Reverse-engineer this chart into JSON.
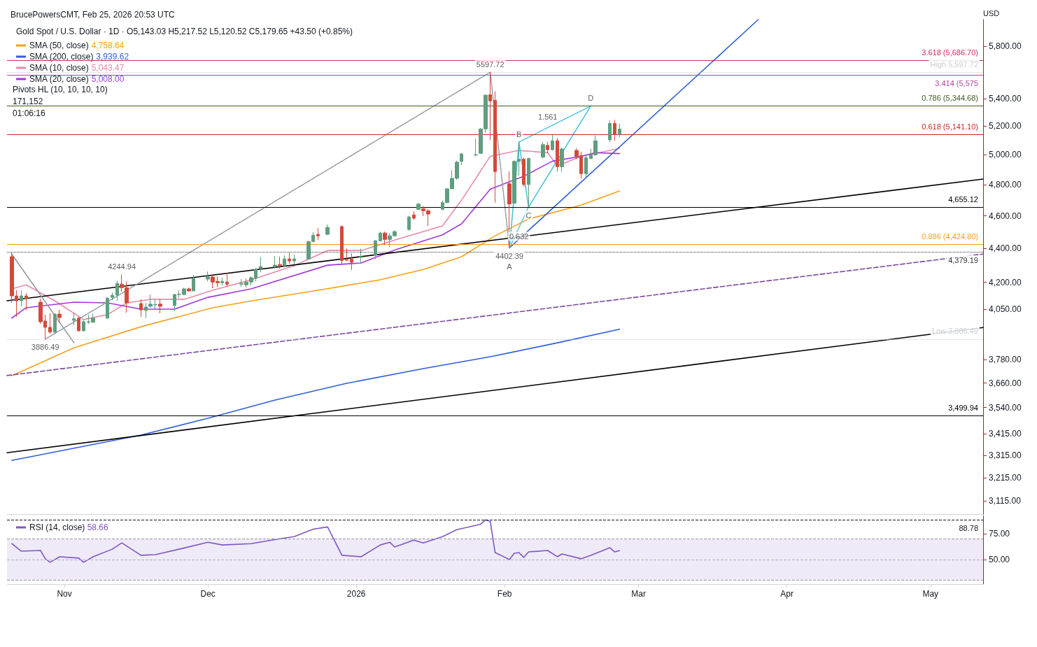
{
  "chart_data": [
    {
      "type": "candlestick",
      "title": "Gold Spot / U.S. Dollar · 1D · O5,143.03 H5,217.52 L5,120.52 C5,179.65 +43.50 (+0.85%)",
      "subtitle": "BrucePowersCMT, Feb 25, 2026 20:53 UTC",
      "ylabel": "USD",
      "colors": [
        "#d24a3c",
        "#d24a3c",
        "#5f9e7f",
        "#d24a3c",
        "#d24a3c",
        "#d24a3c",
        "#d24a3c",
        "#5f9e7f",
        "#d24a3c",
        "#5f9e7f",
        "#d24a3c",
        "#5f9e7f",
        "#5f9e7f",
        "#5f9e7f",
        "#5f9e7f",
        "#5f9e7f",
        "#5f9e7f",
        "#d24a3c",
        "#d24a3c",
        "#d24a3c",
        "#5f9e7f",
        "#5f9e7f",
        "#5f9e7f",
        "#d24a3c",
        "#5f9e7f",
        "#5f9e7f",
        "#5f9e7f",
        "#d24a3c",
        "#5f9e7f",
        "#5f9e7f",
        "#d24a3c",
        "#d24a3c",
        "#5f9e7f",
        "#d24a3c",
        "#5f9e7f",
        "#5f9e7f",
        "#5f9e7f",
        "#5f9e7f",
        "#5f9e7f",
        "#5f9e7f",
        "#d24a3c",
        "#5f9e7f",
        "#d24a3c",
        "#5f9e7f",
        "#5f9e7f",
        "#5f9e7f",
        "#d24a3c",
        "#5f9e7f",
        "#d24a3c",
        "#d24a3c",
        "#d24a3c",
        "#5f9e7f",
        "#5f9e7f",
        "#5f9e7f",
        "#d24a3c",
        "#5f9e7f",
        "#5f9e7f",
        "#5f9e7f",
        "#d24a3c",
        "#5f9e7f",
        "#d24a3c",
        "#d24a3c",
        "#5f9e7f",
        "#5f9e7f",
        "#5f9e7f",
        "#5f9e7f",
        "#5f9e7f",
        "#5f9e7f",
        "#5f9e7f",
        "#5f9e7f",
        "#d24a3c",
        "#d24a3c",
        "#d24a3c",
        "#5f9e7f",
        "#5f9e7f",
        "#d24a3c",
        "#5f9e7f",
        "#5f9e7f",
        "#d24a3c",
        "#5f9e7f",
        "#d24a3c",
        "#5f9e7f",
        "#d24a3c",
        "#d24a3c",
        "#5f9e7f",
        "#5f9e7f",
        "#5f9e7f",
        "#5f9e7f",
        "#d24a3c",
        "#5f9e7f"
      ],
      "x": [
        "2025-10-21",
        "2025-10-22",
        "2025-10-23",
        "2025-10-24",
        "2025-10-27",
        "2025-10-28",
        "2025-10-29",
        "2025-10-30",
        "2025-10-31",
        "2025-11-03",
        "2025-11-04",
        "2025-11-05",
        "2025-11-06",
        "2025-11-07",
        "2025-11-10",
        "2025-11-11",
        "2025-11-12",
        "2025-11-13",
        "2025-11-14",
        "2025-11-17",
        "2025-11-18",
        "2025-11-19",
        "2025-11-20",
        "2025-11-21",
        "2025-11-24",
        "2025-11-25",
        "2025-11-26",
        "2025-11-27",
        "2025-11-28",
        "2025-12-01",
        "2025-12-02",
        "2025-12-03",
        "2025-12-04",
        "2025-12-05",
        "2025-12-08",
        "2025-12-09",
        "2025-12-10",
        "2025-12-11",
        "2025-12-12",
        "2025-12-15",
        "2025-12-16",
        "2025-12-17",
        "2025-12-18",
        "2025-12-19",
        "2025-12-22",
        "2025-12-23",
        "2025-12-24",
        "2025-12-26",
        "2025-12-29",
        "2025-12-30",
        "2025-12-31",
        "2026-01-02",
        "2026-01-05",
        "2026-01-06",
        "2026-01-07",
        "2026-01-08",
        "2026-01-09",
        "2026-01-12",
        "2026-01-13",
        "2026-01-14",
        "2026-01-15",
        "2026-01-16",
        "2026-01-19",
        "2026-01-20",
        "2026-01-21",
        "2026-01-22",
        "2026-01-23",
        "2026-01-26",
        "2026-01-27",
        "2026-01-28",
        "2026-01-29",
        "2026-01-30",
        "2026-02-02",
        "2026-02-03",
        "2026-02-04",
        "2026-02-05",
        "2026-02-06",
        "2026-02-09",
        "2026-02-10",
        "2026-02-11",
        "2026-02-12",
        "2026-02-13",
        "2026-02-16",
        "2026-02-17",
        "2026-02-18",
        "2026-02-19",
        "2026-02-20",
        "2026-02-23",
        "2026-02-24",
        "2026-02-25"
      ],
      "ohlc": [
        [
          4350,
          4378,
          4084,
          4123
        ],
        [
          4123,
          4155,
          4007,
          4096
        ],
        [
          4096,
          4155,
          4065,
          4123
        ],
        [
          4123,
          4139,
          4045,
          4108
        ],
        [
          4088,
          4108,
          3969,
          3980
        ],
        [
          3984,
          4019,
          3886.49,
          3950
        ],
        [
          3950,
          4026,
          3916,
          3924
        ],
        [
          3924,
          4026,
          3912,
          4022
        ],
        [
          4022,
          4045,
          3973,
          4003
        ],
        [
          3988,
          4030,
          3961,
          3996
        ],
        [
          4000,
          4007,
          3928,
          3931
        ],
        [
          3931,
          3988,
          3928,
          3980
        ],
        [
          3977,
          4019,
          3969,
          3980
        ],
        [
          3977,
          4026,
          3977,
          4000
        ],
        [
          4000,
          4115,
          3996,
          4111
        ],
        [
          4115,
          4143,
          4100,
          4127
        ],
        [
          4127,
          4210,
          4096,
          4194
        ],
        [
          4190,
          4244.94,
          4147,
          4170
        ],
        [
          4170,
          4206,
          4030,
          4084
        ],
        [
          4080,
          4104,
          4007,
          4045
        ],
        [
          4042,
          4084,
          4000,
          4061
        ],
        [
          4065,
          4131,
          4057,
          4077
        ],
        [
          4073,
          4104,
          4045,
          4075
        ],
        [
          4077,
          4104,
          4026,
          4065
        ],
        [
          4069,
          4135,
          4038,
          4131
        ],
        [
          4131,
          4155,
          4111,
          4133
        ],
        [
          4131,
          4170,
          4127,
          4163
        ],
        [
          4163,
          4170,
          4147,
          4151
        ],
        [
          4151,
          4243,
          4151,
          4223
        ],
        [
          4219,
          4263,
          4206,
          4231
        ],
        [
          4231,
          4245,
          4167,
          4202
        ],
        [
          4206,
          4235,
          4174,
          4198
        ],
        [
          4198,
          4227,
          4182,
          4206
        ],
        [
          4202,
          4255,
          4174,
          4190
        ],
        [
          4190,
          4219,
          4174,
          4194
        ],
        [
          4186,
          4223,
          4170,
          4202
        ],
        [
          4202,
          4235,
          4182,
          4227
        ],
        [
          4223,
          4284,
          4206,
          4276
        ],
        [
          4280,
          4350,
          4259,
          4292
        ],
        [
          4292,
          4354,
          4280,
          4300
        ],
        [
          4304,
          4350,
          4280,
          4296
        ],
        [
          4296,
          4358,
          4288,
          4337
        ],
        [
          4337,
          4374,
          4308,
          4325
        ],
        [
          4325,
          4362,
          4304,
          4337
        ],
        [
          4337,
          4446,
          4333,
          4441
        ],
        [
          4441,
          4498,
          4437,
          4480
        ],
        [
          4485,
          4524,
          4450,
          4476
        ],
        [
          4485,
          4546,
          4480,
          4528
        ],
        [
          4533,
          4541,
          4304,
          4327
        ],
        [
          4333,
          4399,
          4325,
          4329
        ],
        [
          4337,
          4370,
          4271,
          4317
        ],
        [
          4346,
          4399,
          4313,
          4350
        ],
        [
          4358,
          4450,
          4337,
          4446
        ],
        [
          4446,
          4502,
          4441,
          4493
        ],
        [
          4493,
          4502,
          4420,
          4454
        ],
        [
          4454,
          4493,
          4407,
          4476
        ],
        [
          4476,
          4511,
          4472,
          4502
        ],
        [
          4515,
          4600,
          4507,
          4593
        ],
        [
          4606,
          4628,
          4576,
          4585
        ],
        [
          4641,
          4680,
          4636,
          4675
        ],
        [
          4645,
          4662,
          4598,
          4632
        ],
        [
          4632,
          4641,
          4537,
          4611
        ],
        [
          4641,
          4697,
          4636,
          4684
        ],
        [
          4684,
          4778,
          4680,
          4773
        ],
        [
          4773,
          4897,
          4773,
          4842
        ],
        [
          4842,
          4960,
          4832,
          4950
        ],
        [
          4955,
          5012,
          4930,
          5006
        ],
        [
          4998,
          5112,
          4990,
          5001
        ],
        [
          5010,
          5186,
          5006,
          5180
        ],
        [
          5180,
          5428,
          5155,
          5425
        ],
        [
          5428,
          5597.72,
          5103,
          5382
        ],
        [
          5386,
          5454,
          4684,
          4887
        ],
        [
          4806,
          4887,
          4402.39,
          4675
        ],
        [
          4680,
          4965,
          4675,
          4955
        ],
        [
          4955,
          5088,
          4860,
          4970
        ],
        [
          4970,
          4980,
          4787,
          4801
        ],
        [
          4801,
          4980,
          4655.12,
          4975
        ],
        [
          4985,
          5090,
          4975,
          5070
        ],
        [
          5065,
          5088,
          5012,
          5035
        ],
        [
          5035,
          5137,
          5030,
          5097
        ],
        [
          5097,
          5117,
          4887,
          4920
        ],
        [
          4920,
          5050,
          4887,
          5040
        ],
        [
          5030,
          5045,
          4970,
          4990
        ],
        [
          4995,
          5020,
          4840,
          4873
        ],
        [
          4873,
          4995,
          4850,
          4980
        ],
        [
          4975,
          5040,
          4970,
          5000
        ],
        [
          5000,
          5133,
          4995,
          5097
        ],
        [
          5103,
          5240,
          5088,
          5219
        ],
        [
          5219,
          5245,
          5098,
          5141
        ],
        [
          5143.03,
          5217.52,
          5120.52,
          5179.65
        ]
      ],
      "series": [
        {
          "type": "line",
          "name": "SMA (50, close) 4,758.64",
          "color": "#f5a01a",
          "x": [
            "2025-10-21",
            "2025-11-03",
            "2025-11-17",
            "2025-12-02",
            "2025-12-10",
            "2025-12-24",
            "2026-01-06",
            "2026-01-15",
            "2026-01-23",
            "2026-01-30",
            "2026-02-06",
            "2026-02-17",
            "2026-02-25"
          ],
          "values": [
            3697,
            3841,
            3953,
            4057,
            4095,
            4155,
            4215,
            4275,
            4350,
            4476,
            4580,
            4668,
            4758.64
          ]
        },
        {
          "type": "line",
          "name": "SMA (200, close) 3,939.62",
          "color": "#2f5fd8",
          "x": [
            "2025-10-21",
            "2025-11-17",
            "2025-12-01",
            "2025-12-15",
            "2025-12-30",
            "2026-01-15",
            "2026-01-29",
            "2026-02-12",
            "2026-02-25"
          ],
          "values": [
            3293,
            3409,
            3488,
            3576,
            3659,
            3733,
            3794,
            3867,
            3939.62
          ]
        },
        {
          "type": "line",
          "name": "SMA (10, close) 5,043.47",
          "color": "#e88aa6",
          "x": [
            "2025-10-21",
            "2025-10-24",
            "2025-10-30",
            "2025-11-05",
            "2025-11-10",
            "2025-11-14",
            "2025-11-19",
            "2025-11-26",
            "2025-12-02",
            "2025-12-10",
            "2025-12-19",
            "2025-12-26",
            "2026-01-02",
            "2026-01-09",
            "2026-01-19",
            "2026-01-23",
            "2026-01-29",
            "2026-02-04",
            "2026-02-10",
            "2026-02-12",
            "2026-02-17",
            "2026-02-25"
          ],
          "values": [
            4163,
            4186,
            4096,
            3992,
            4019,
            4084,
            4104,
            4104,
            4155,
            4215,
            4296,
            4387,
            4387,
            4450,
            4537,
            4700,
            4990,
            5030,
            5015,
            4925,
            4990,
            5043.47
          ]
        },
        {
          "type": "line",
          "name": "SMA (20, close) 5,008.00",
          "color": "#a03ad6",
          "x": [
            "2025-10-21",
            "2025-10-24",
            "2025-11-03",
            "2025-11-10",
            "2025-11-17",
            "2025-11-24",
            "2025-12-01",
            "2025-12-10",
            "2025-12-26",
            "2026-01-02",
            "2026-01-09",
            "2026-01-19",
            "2026-01-23",
            "2026-01-29",
            "2026-02-05",
            "2026-02-11",
            "2026-02-17",
            "2026-02-20",
            "2026-02-25"
          ],
          "values": [
            4000,
            4057,
            4088,
            4084,
            4049,
            4049,
            4115,
            4163,
            4300,
            4313,
            4390,
            4482,
            4550,
            4770,
            4856,
            4957,
            4990,
            5015,
            5008.0
          ]
        },
        {
          "type": "line",
          "color": "#000000",
          "x": [
            "2025-10-20",
            "2026-05-12"
          ],
          "values": [
            4096,
            4837
          ]
        },
        {
          "type": "line",
          "color": "#000000",
          "x": [
            "2025-10-20",
            "2026-05-12"
          ],
          "values": [
            3328,
            3949
          ]
        },
        {
          "type": "line",
          "color": "#7b4aa0",
          "line_style": "dashed",
          "x": [
            "2025-10-20",
            "2026-05-12"
          ],
          "values": [
            3698,
            4366
          ]
        },
        {
          "type": "line",
          "color": "#2b5fd9",
          "x": [
            "2026-02-02",
            "2026-03-26"
          ],
          "values": [
            4402.39,
            6015
          ]
        },
        {
          "type": "line",
          "color": "#4cc3d9",
          "x": [
            "2026-02-02",
            "2026-02-04",
            "2026-02-06",
            "2026-02-19"
          ],
          "values": [
            4402.39,
            5088,
            4655.12,
            5344.68
          ]
        },
        {
          "type": "line",
          "color": "#4cc3d9",
          "line_style": "dotted",
          "x": [
            "2026-02-04",
            "2026-02-19"
          ],
          "values": [
            5088,
            5344.68
          ]
        },
        {
          "type": "line",
          "color": "#4cc3d9",
          "line_style": "dotted",
          "x": [
            "2026-02-02",
            "2026-02-06"
          ],
          "values": [
            4402.39,
            4655.12
          ]
        },
        {
          "type": "line",
          "color": "#9598a1",
          "line_style": "dotted",
          "x": [
            "2025-10-28",
            "2026-01-29"
          ],
          "values": [
            3886.49,
            5597.72
          ]
        },
        {
          "type": "line",
          "color": "#9598a1",
          "line_style": "dotted",
          "x": [
            "2026-01-29",
            "2026-02-02"
          ],
          "values": [
            5597.72,
            4402.39
          ]
        },
        {
          "type": "line",
          "color": "#9598a1",
          "x": [
            "2025-10-21",
            "2025-11-03"
          ],
          "values": [
            4366,
            3867
          ]
        }
      ],
      "ref_lines": [
        {
          "axis": "y",
          "value": 5686.7,
          "label": "3.618 (5,686.70)",
          "color": "#d12c5c"
        },
        {
          "axis": "y",
          "value": 5597.72,
          "label": "High 5,597.72",
          "color": "#c9ccd4",
          "line_style": "dotted"
        },
        {
          "axis": "y",
          "value": 5575,
          "label": "3.414 (5,575",
          "color": "#b0479a"
        },
        {
          "axis": "y",
          "value": 5344.68,
          "label": "0.786 (5,344.68)",
          "color": "#3d5a1e"
        },
        {
          "axis": "y",
          "value": 5141.1,
          "label": "0.618 (5,141.10)",
          "color": "#c62828"
        },
        {
          "axis": "y",
          "value": 4655.12,
          "label": "4,655.12",
          "color": "#000000"
        },
        {
          "axis": "y",
          "value": 4424.8,
          "label": "0.886 (4,424.80)",
          "color": "#f5a01a"
        },
        {
          "axis": "y",
          "value": 4379.19,
          "label": "4,379.19",
          "color": "#333333",
          "line_style": "dotted"
        },
        {
          "axis": "y",
          "value": 3886.49,
          "label": "Low 3,886.49",
          "color": "#c9ccd4",
          "line_style": "dotted"
        },
        {
          "axis": "y",
          "value": 3499.94,
          "label": "3,499.94",
          "color": "#000000"
        }
      ],
      "annotations": [
        {
          "text": "5597.72",
          "x": "2026-01-29",
          "y": 5597.72
        },
        {
          "text": "4244.94",
          "x": "2025-11-13",
          "y": 4244.94
        },
        {
          "text": "3886.49",
          "x": "2025-10-28",
          "y": 3886.49
        },
        {
          "text": "4402.39",
          "x": "2026-02-02",
          "y": 4402.39
        },
        {
          "text": "A",
          "x": "2026-02-02",
          "y": 4402.39
        },
        {
          "text": "B",
          "x": "2026-02-04",
          "y": 5088
        },
        {
          "text": "C",
          "x": "2026-02-06",
          "y": 4655.12
        },
        {
          "text": "D",
          "x": "2026-02-19",
          "y": 5344.68
        },
        {
          "text": "1.561",
          "x": "2026-02-10",
          "y": 5211
        },
        {
          "text": "0.632",
          "x": "2026-02-04",
          "y": 4523
        },
        "Pivots HL (10, 10, 10, 10)",
        "171,152",
        "01:06:16"
      ],
      "xlim": [
        "2025-10-20",
        "2026-05-12"
      ],
      "log": "y",
      "ylim": [
        3060,
        6015
      ],
      "yticks": [
        {
          "value": 3115,
          "label": "3,115.00"
        },
        {
          "value": 3215,
          "label": "3,215.00"
        },
        {
          "value": 3315,
          "label": "3,315.00"
        },
        {
          "value": 3415,
          "label": "3,415.00"
        },
        {
          "value": 3540,
          "label": "3,540.00"
        },
        {
          "value": 3660,
          "label": "3,660.00"
        },
        {
          "value": 3780,
          "label": "3,780.00"
        },
        {
          "value": 4050,
          "label": "4,050.00"
        },
        {
          "value": 4200,
          "label": "4,200.00"
        },
        {
          "value": 4400,
          "label": "4,400.00"
        },
        {
          "value": 4600,
          "label": "4,600.00"
        },
        {
          "value": 4800,
          "label": "4,800.00"
        },
        {
          "value": 5000,
          "label": "5,000.00"
        },
        {
          "value": 5200,
          "label": "5,200.00"
        },
        {
          "value": 5400,
          "label": "5,400.00"
        },
        {
          "value": 5800,
          "label": "5,800.00"
        }
      ],
      "legend": "top left",
      "marker": "none",
      "tick_labels": "y"
    },
    {
      "type": "line",
      "x": [
        "2025-10-21",
        "2025-10-23",
        "2025-10-27",
        "2025-10-28",
        "2025-10-29",
        "2025-10-31",
        "2025-11-04",
        "2025-11-05",
        "2025-11-07",
        "2025-11-11",
        "2025-11-13",
        "2025-11-17",
        "2025-11-20",
        "2025-11-25",
        "2025-12-01",
        "2025-12-04",
        "2025-12-10",
        "2025-12-16",
        "2025-12-19",
        "2025-12-23",
        "2025-12-26",
        "2025-12-29",
        "2026-01-02",
        "2026-01-06",
        "2026-01-08",
        "2026-01-09",
        "2026-01-13",
        "2026-01-15",
        "2026-01-19",
        "2026-01-22",
        "2026-01-27",
        "2026-01-28",
        "2026-01-29",
        "2026-01-30",
        "2026-02-02",
        "2026-02-03",
        "2026-02-04",
        "2026-02-05",
        "2026-02-06",
        "2026-02-10",
        "2026-02-12",
        "2026-02-13",
        "2026-02-17",
        "2026-02-19",
        "2026-02-23",
        "2026-02-24",
        "2026-02-25"
      ],
      "series": [
        {
          "name": "RSI (14, close) 58.66",
          "color": "#7e57c2",
          "values": [
            65.5,
            58.1,
            58.8,
            50.7,
            47.3,
            52.7,
            51.4,
            47.3,
            52.7,
            60.1,
            66.2,
            54.1,
            54.7,
            60.1,
            66.9,
            64.2,
            65.5,
            70.3,
            72.3,
            79.7,
            81.8,
            54.1,
            52.7,
            64.2,
            66.9,
            62.2,
            68.9,
            66.2,
            72.3,
            79.1,
            84.5,
            88.78,
            87.2,
            56.8,
            50.0,
            56.1,
            56.8,
            52.0,
            57.4,
            58.8,
            52.7,
            55.4,
            50.7,
            54.1,
            61.5,
            57.4,
            58.66
          ]
        }
      ],
      "ref_lines": [
        {
          "axis": "y",
          "value": 88.78,
          "label": "88.78",
          "color": "#131722",
          "line_style": "dashed"
        },
        {
          "axis": "y",
          "value": 70,
          "color": "#9598a1",
          "line_style": "dashed"
        },
        {
          "axis": "y",
          "value": 50,
          "color": "#b2b5be",
          "line_style": "dashed"
        },
        {
          "axis": "y",
          "value": 30,
          "color": "#9598a1",
          "line_style": "dashed"
        }
      ],
      "bands": [
        {
          "axis": "y",
          "from": 30,
          "to": 70,
          "color": "#efeaf8"
        }
      ],
      "xlim": [
        "2025-10-20",
        "2026-05-12"
      ],
      "xticks": [
        {
          "value": "2025-11-01",
          "label": "Nov"
        },
        {
          "value": "2025-12-01",
          "label": "Dec"
        },
        {
          "value": "2026-01-01",
          "label": "2026"
        },
        {
          "value": "2026-02-01",
          "label": "Feb"
        },
        {
          "value": "2026-03-01",
          "label": "Mar"
        },
        {
          "value": "2026-04-01",
          "label": "Apr"
        },
        {
          "value": "2026-05-01",
          "label": "May"
        }
      ],
      "ylim": [
        26,
        93
      ],
      "yticks": [
        {
          "value": 50,
          "label": "50.00"
        },
        {
          "value": 75,
          "label": "75.00"
        }
      ],
      "legend": "top left",
      "marker": "none"
    }
  ]
}
